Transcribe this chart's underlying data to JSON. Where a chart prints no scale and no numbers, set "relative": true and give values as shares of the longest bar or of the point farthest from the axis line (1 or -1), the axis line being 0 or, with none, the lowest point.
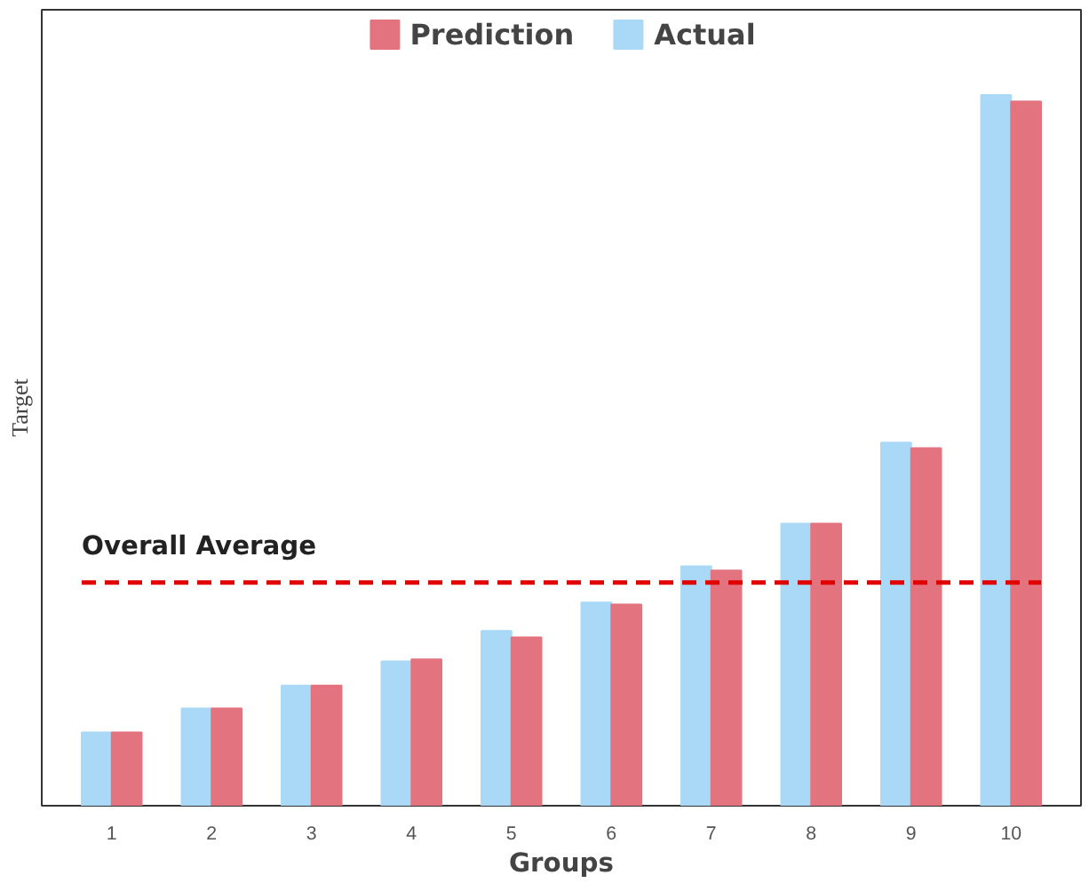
{
  "chart_data": {
    "type": "bar",
    "xlabel": "Groups",
    "ylabel": "Target",
    "relative": true,
    "categories": [
      "1",
      "2",
      "3",
      "4",
      "5",
      "6",
      "7",
      "8",
      "9",
      "10"
    ],
    "series": [
      {
        "name": "Actual",
        "color": "#a9d9f7",
        "values": [
          0.103,
          0.137,
          0.169,
          0.203,
          0.246,
          0.286,
          0.337,
          0.397,
          0.511,
          1.0
        ]
      },
      {
        "name": "Prediction",
        "color": "#e3747f",
        "values": [
          0.103,
          0.137,
          0.169,
          0.206,
          0.237,
          0.283,
          0.331,
          0.397,
          0.503,
          0.991
        ]
      }
    ],
    "ref_lines": [
      {
        "axis": "y",
        "value": 0.314,
        "label": "Overall Average",
        "color": "#e00000",
        "line_style": "dashed"
      }
    ],
    "legend": "top",
    "grid": false
  }
}
